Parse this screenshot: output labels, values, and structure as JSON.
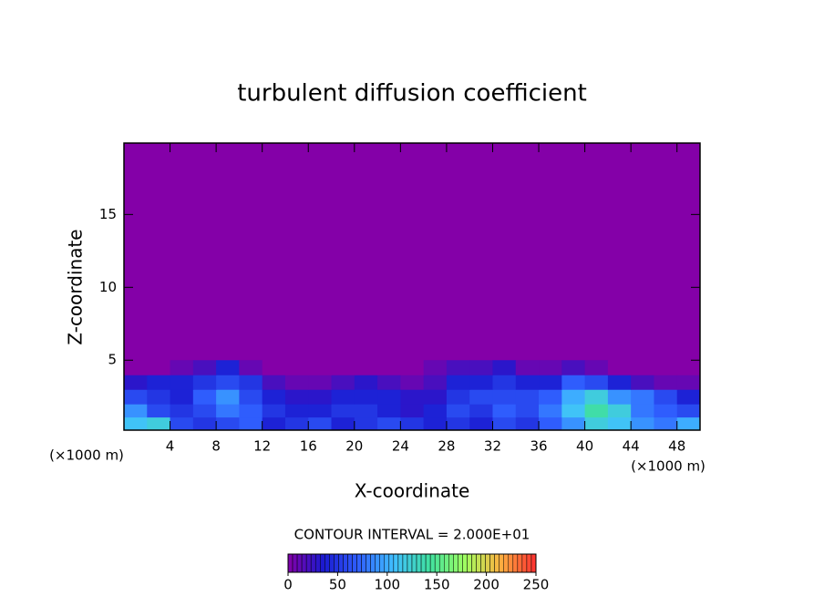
{
  "chart_data": {
    "type": "contour",
    "title": "turbulent diffusion coefficient",
    "x_label": "X-coordinate",
    "y_label": "Z-coordinate",
    "x_unit": "(×1000 m)",
    "y_unit": "(×1000 m)",
    "note": "CONTOUR INTERVAL = 2.000E+01",
    "xlim": [
      0,
      50
    ],
    "xticks": [
      4,
      8,
      12,
      16,
      20,
      24,
      28,
      32,
      36,
      40,
      44,
      48
    ],
    "ylim": [
      0.2,
      19.9
    ],
    "yticks": [
      5,
      10,
      15
    ],
    "x": [
      1,
      3,
      5,
      7,
      9,
      11,
      13,
      15,
      17,
      19,
      21,
      23,
      25,
      27,
      29,
      31,
      33,
      35,
      37,
      39,
      41,
      43,
      45,
      47,
      49
    ],
    "y": [
      0.7,
      1.5,
      2.5,
      3.5,
      4.5
    ],
    "z": [
      [
        110,
        120,
        60,
        50,
        60,
        70,
        40,
        50,
        60,
        40,
        50,
        60,
        50,
        40,
        50,
        40,
        60,
        50,
        70,
        90,
        120,
        110,
        90,
        80,
        100
      ],
      [
        90,
        60,
        50,
        60,
        80,
        70,
        50,
        40,
        40,
        50,
        50,
        40,
        30,
        40,
        60,
        50,
        70,
        60,
        80,
        110,
        140,
        120,
        80,
        70,
        60
      ],
      [
        60,
        50,
        40,
        70,
        90,
        60,
        40,
        30,
        30,
        40,
        40,
        40,
        30,
        30,
        50,
        60,
        60,
        60,
        70,
        100,
        120,
        90,
        80,
        60,
        40
      ],
      [
        30,
        40,
        40,
        50,
        60,
        50,
        20,
        10,
        10,
        20,
        30,
        20,
        10,
        20,
        40,
        40,
        50,
        40,
        40,
        70,
        60,
        40,
        20,
        10,
        10
      ],
      [
        0,
        0,
        10,
        20,
        40,
        10,
        0,
        0,
        0,
        0,
        0,
        0,
        0,
        10,
        20,
        20,
        30,
        10,
        10,
        20,
        10,
        0,
        0,
        0,
        0
      ]
    ],
    "clim": [
      0,
      250
    ],
    "cticks": [
      0,
      50,
      100,
      150,
      200,
      250
    ],
    "colormap": [
      "#8400a8",
      "#1a1ad0",
      "#3060ff",
      "#40c0ff",
      "#40e0a0",
      "#a0ff60",
      "#ffb040",
      "#ff3030"
    ]
  }
}
